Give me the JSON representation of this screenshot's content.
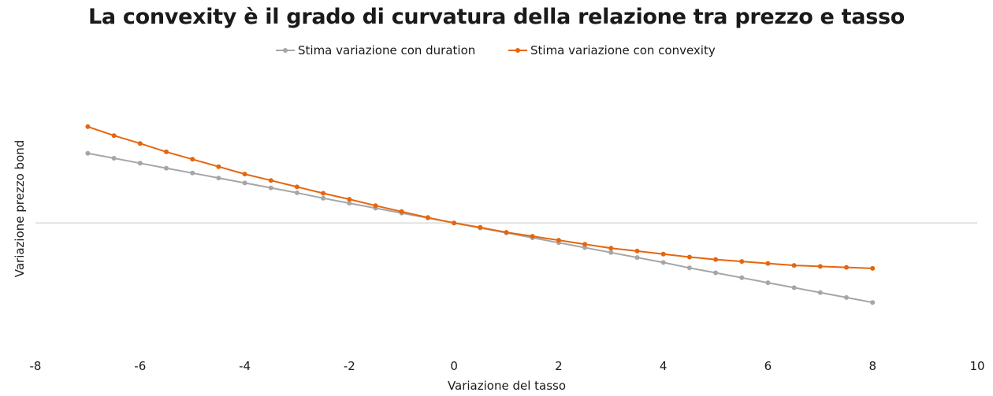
{
  "chart_data": {
    "type": "line",
    "title": "La convexity è il grado di curvatura della relazione tra prezzo e tasso",
    "xlabel": "Variazione del tasso",
    "ylabel": "Variazione prezzo bond",
    "xlim": [
      -8,
      10
    ],
    "x_ticks": [
      -8,
      -6,
      -4,
      -2,
      0,
      2,
      4,
      6,
      8,
      10
    ],
    "ylim": [
      -25,
      30
    ],
    "y_gridline_at": 0,
    "grid": false,
    "legend_position": "top-center",
    "x": [
      -7,
      -6.5,
      -6,
      -5.5,
      -5,
      -4.5,
      -4,
      -3.5,
      -3,
      -2.5,
      -2,
      -1.5,
      -1,
      -0.5,
      0,
      0.5,
      1,
      1.5,
      2,
      2.5,
      3,
      3.5,
      4,
      4.5,
      5,
      5.5,
      6,
      6.5,
      7,
      7.5,
      8
    ],
    "series": [
      {
        "name": "Stima variazione con duration",
        "color": "#a6a6a6",
        "values": [
          14.1,
          13.1,
          12.1,
          11.1,
          10.1,
          9.1,
          8.1,
          7.1,
          6.1,
          5.0,
          4.0,
          3.0,
          2.0,
          1.0,
          0.0,
          -1.0,
          -2.0,
          -3.0,
          -4.0,
          -5.0,
          -6.0,
          -7.0,
          -8.0,
          -9.1,
          -10.1,
          -11.1,
          -12.1,
          -13.1,
          -14.1,
          -15.1,
          -16.1
        ]
      },
      {
        "name": "Stima variazione con convexity",
        "color": "#e5660e",
        "values": [
          19.5,
          17.7,
          16.1,
          14.4,
          12.9,
          11.4,
          9.9,
          8.6,
          7.3,
          6.0,
          4.8,
          3.5,
          2.3,
          1.1,
          0.0,
          -0.9,
          -1.9,
          -2.7,
          -3.5,
          -4.3,
          -5.1,
          -5.7,
          -6.3,
          -6.9,
          -7.4,
          -7.8,
          -8.2,
          -8.6,
          -8.8,
          -9.0,
          -9.2
        ]
      }
    ]
  }
}
